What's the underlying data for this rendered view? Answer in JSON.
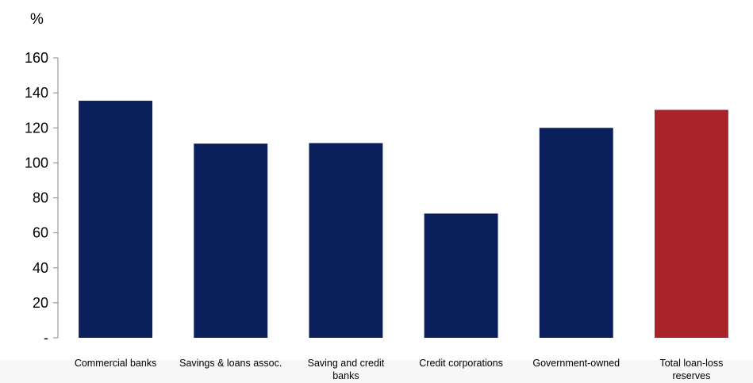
{
  "chart_data": {
    "type": "bar",
    "ylabel": "%",
    "categories": [
      [
        "Commercial banks"
      ],
      [
        "Savings & loans assoc."
      ],
      [
        "Saving and credit",
        "banks"
      ],
      [
        "Credit corporations"
      ],
      [
        "Government-owned"
      ],
      [
        "Total loan-loss",
        "reserves"
      ]
    ],
    "values": [
      135.5,
      111,
      111.3,
      71,
      120,
      130.3
    ],
    "colors": [
      "#0a1f5c",
      "#0a1f5c",
      "#0a1f5c",
      "#0a1f5c",
      "#0a1f5c",
      "#a8232a"
    ],
    "ylim": [
      0,
      160
    ],
    "yticks": [
      0,
      20,
      40,
      60,
      80,
      100,
      120,
      140,
      160
    ],
    "ytick_labels": [
      "-",
      "20",
      "40",
      "60",
      "80",
      "100",
      "120",
      "140",
      "160"
    ],
    "grid": false,
    "legend": "none"
  }
}
